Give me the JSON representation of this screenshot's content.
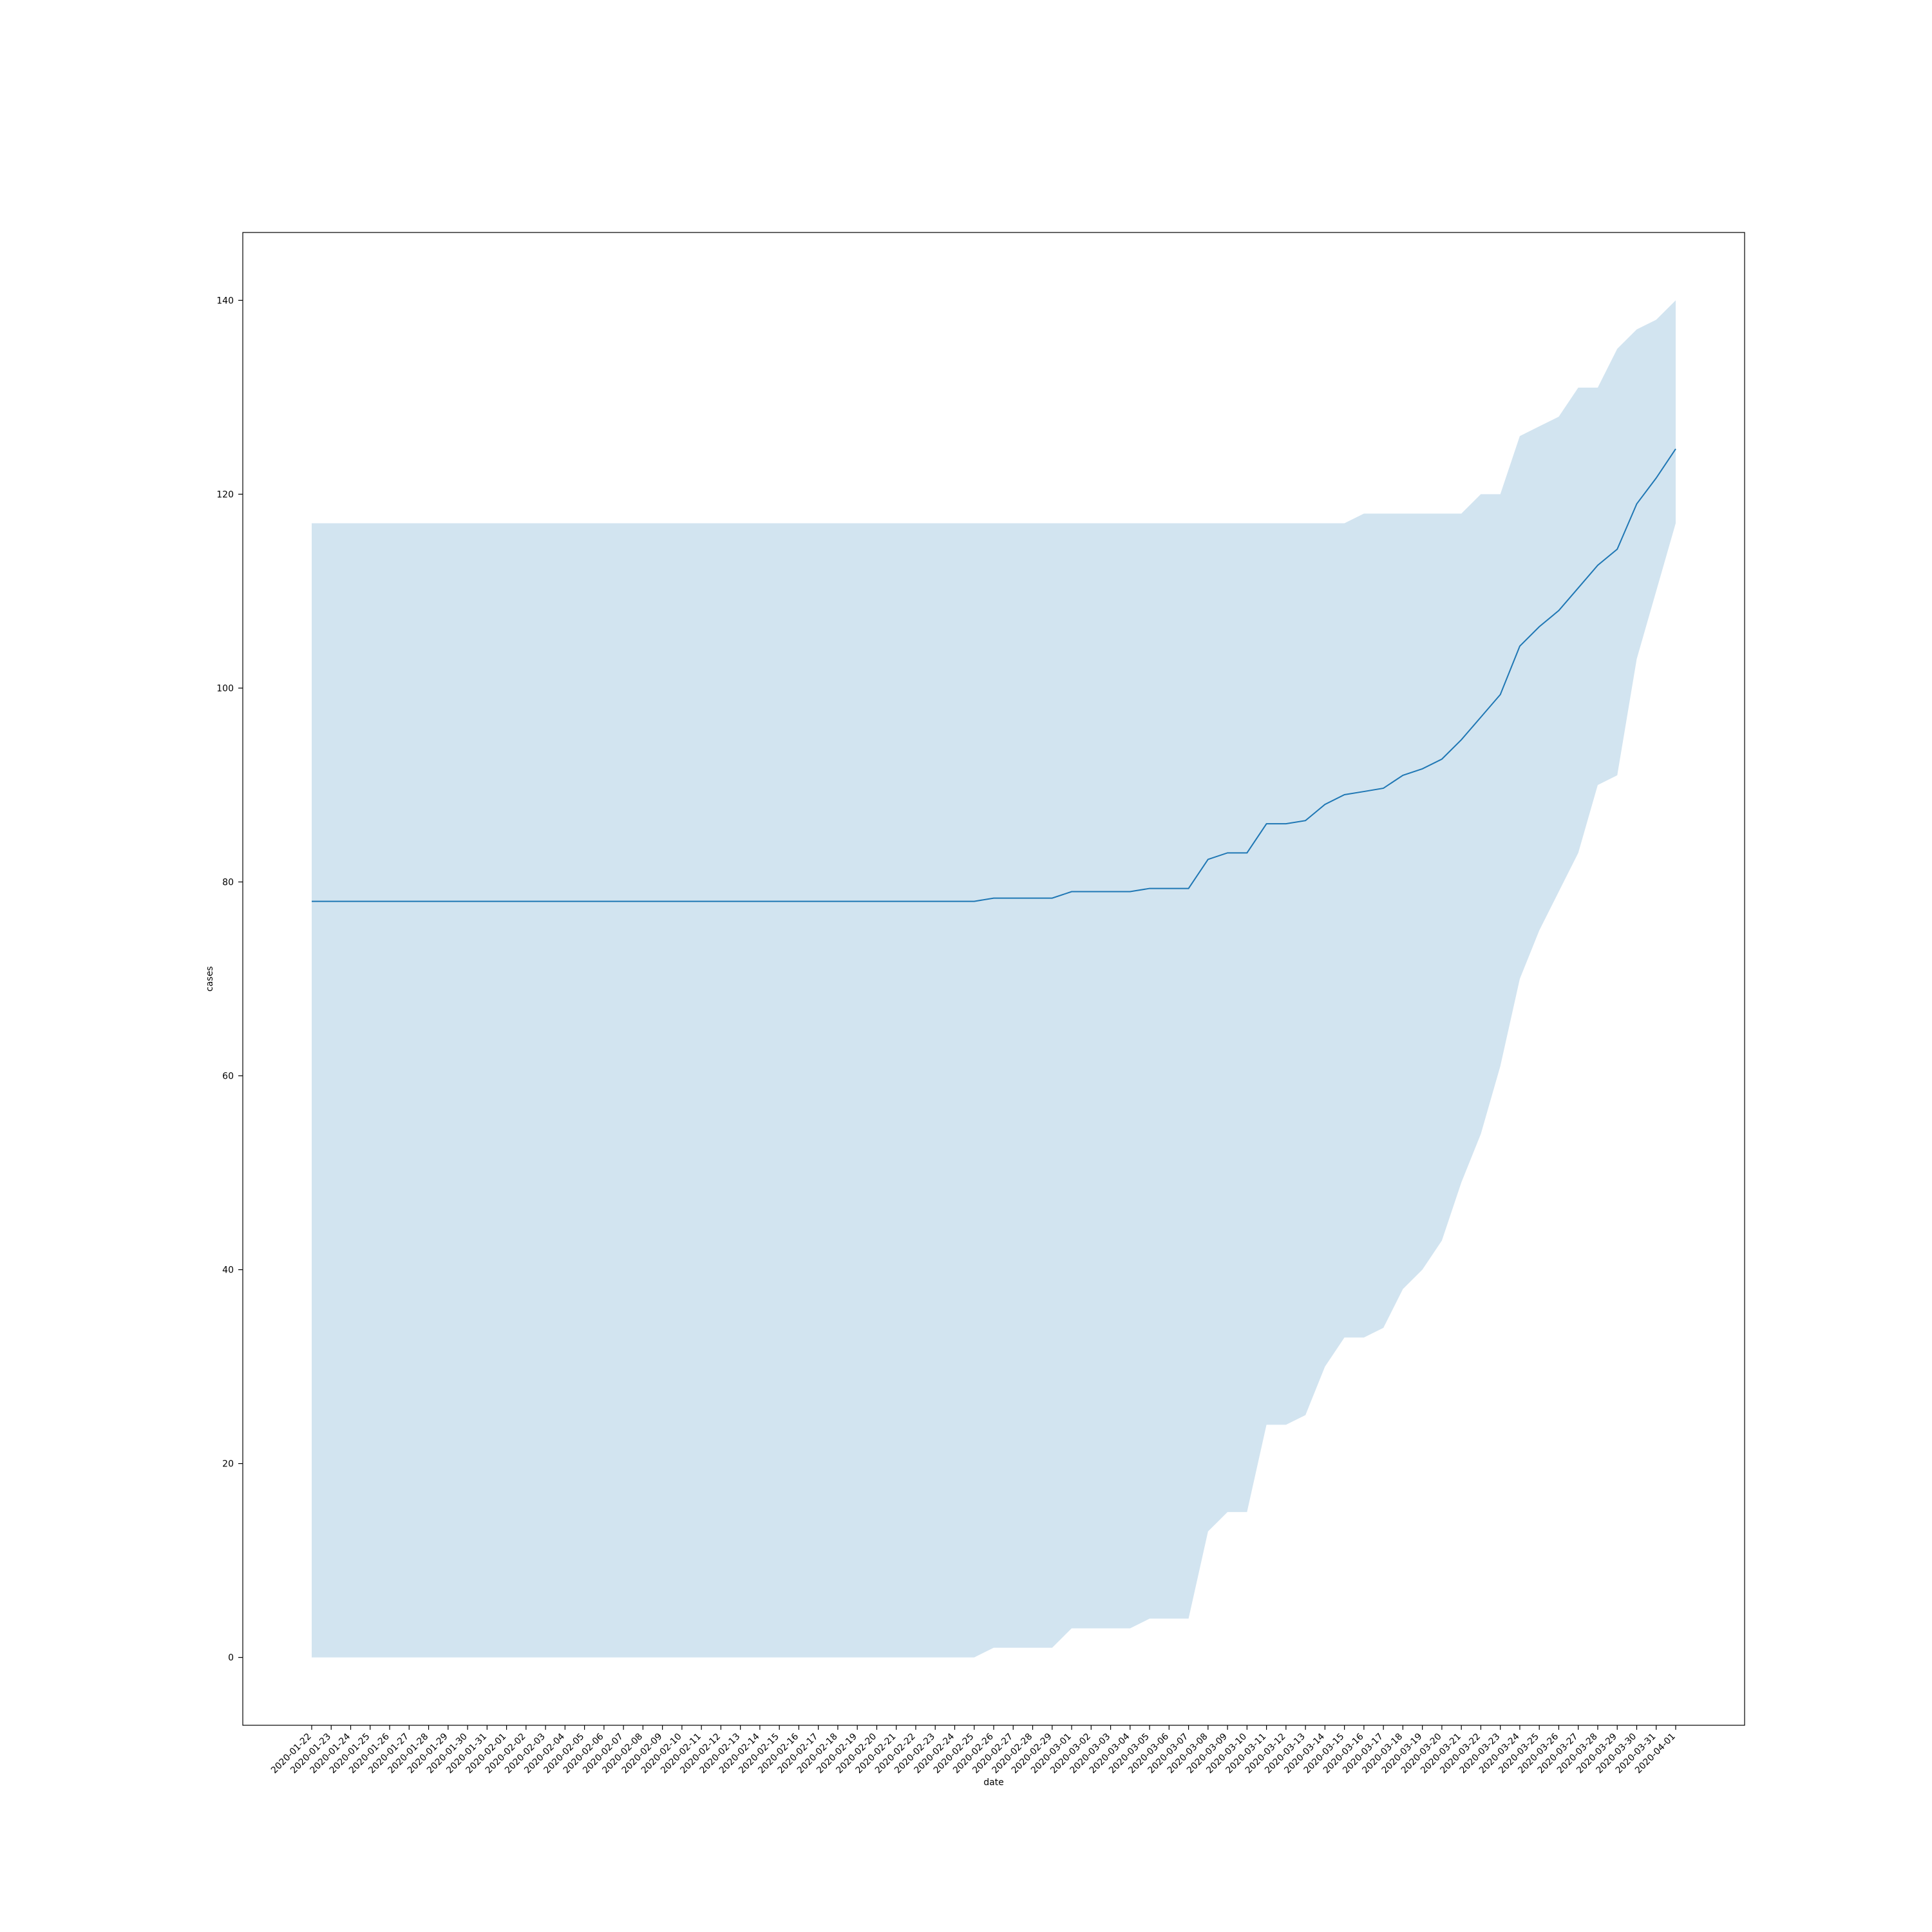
{
  "chart_data": {
    "type": "line",
    "title": "",
    "xlabel": "date",
    "ylabel": "cases",
    "x": [
      "2020-01-22",
      "2020-01-23",
      "2020-01-24",
      "2020-01-25",
      "2020-01-26",
      "2020-01-27",
      "2020-01-28",
      "2020-01-29",
      "2020-01-30",
      "2020-01-31",
      "2020-02-01",
      "2020-02-02",
      "2020-02-03",
      "2020-02-04",
      "2020-02-05",
      "2020-02-06",
      "2020-02-07",
      "2020-02-08",
      "2020-02-09",
      "2020-02-10",
      "2020-02-11",
      "2020-02-12",
      "2020-02-13",
      "2020-02-14",
      "2020-02-15",
      "2020-02-16",
      "2020-02-17",
      "2020-02-18",
      "2020-02-19",
      "2020-02-20",
      "2020-02-21",
      "2020-02-22",
      "2020-02-23",
      "2020-02-24",
      "2020-02-25",
      "2020-02-26",
      "2020-02-27",
      "2020-02-28",
      "2020-02-29",
      "2020-03-01",
      "2020-03-02",
      "2020-03-03",
      "2020-03-04",
      "2020-03-05",
      "2020-03-06",
      "2020-03-07",
      "2020-03-08",
      "2020-03-09",
      "2020-03-10",
      "2020-03-11",
      "2020-03-12",
      "2020-03-13",
      "2020-03-14",
      "2020-03-15",
      "2020-03-16",
      "2020-03-17",
      "2020-03-18",
      "2020-03-19",
      "2020-03-20",
      "2020-03-21",
      "2020-03-22",
      "2020-03-23",
      "2020-03-24",
      "2020-03-25",
      "2020-03-26",
      "2020-03-27",
      "2020-03-28",
      "2020-03-29",
      "2020-03-30",
      "2020-03-31",
      "2020-04-01"
    ],
    "series": [
      {
        "values": [
          78,
          78,
          78,
          78,
          78,
          78,
          78,
          78,
          78,
          78,
          78,
          78,
          78,
          78,
          78,
          78,
          78,
          78,
          78,
          78,
          78,
          78,
          78,
          78,
          78,
          78,
          78,
          78,
          78,
          78,
          78,
          78,
          78,
          78,
          78,
          78.33,
          78.33,
          78.33,
          78.33,
          79,
          79,
          79,
          79,
          79.33,
          79.33,
          79.33,
          82.33,
          83,
          83,
          86,
          86,
          86.33,
          88,
          89,
          89.33,
          89.67,
          91,
          91.67,
          92.67,
          94.67,
          97,
          99.33,
          104.33,
          106.33,
          108,
          110.33,
          112.67,
          114.33,
          119,
          121.67,
          124.67
        ],
        "lower": [
          0,
          0,
          0,
          0,
          0,
          0,
          0,
          0,
          0,
          0,
          0,
          0,
          0,
          0,
          0,
          0,
          0,
          0,
          0,
          0,
          0,
          0,
          0,
          0,
          0,
          0,
          0,
          0,
          0,
          0,
          0,
          0,
          0,
          0,
          0,
          1,
          1,
          1,
          1,
          3,
          3,
          3,
          3,
          4,
          4,
          4,
          13,
          15,
          15,
          24,
          24,
          25,
          30,
          33,
          33,
          34,
          38,
          40,
          43,
          49,
          54,
          61,
          70,
          75,
          79,
          83,
          90,
          91,
          103,
          110,
          117
        ],
        "upper": [
          117,
          117,
          117,
          117,
          117,
          117,
          117,
          117,
          117,
          117,
          117,
          117,
          117,
          117,
          117,
          117,
          117,
          117,
          117,
          117,
          117,
          117,
          117,
          117,
          117,
          117,
          117,
          117,
          117,
          117,
          117,
          117,
          117,
          117,
          117,
          117,
          117,
          117,
          117,
          117,
          117,
          117,
          117,
          117,
          117,
          117,
          117,
          117,
          117,
          117,
          117,
          117,
          117,
          117,
          118,
          118,
          118,
          118,
          118,
          118,
          120,
          120,
          126,
          127,
          128,
          131,
          131,
          135,
          137,
          138,
          140
        ]
      }
    ],
    "ylim": [
      -7,
      147
    ],
    "yticks": [
      0,
      20,
      40,
      60,
      80,
      100,
      120,
      140
    ],
    "grid": false,
    "legend": "none",
    "colors": {
      "line": "#1f77b4",
      "band": "#1f77b4",
      "band_opacity": 0.2
    }
  }
}
